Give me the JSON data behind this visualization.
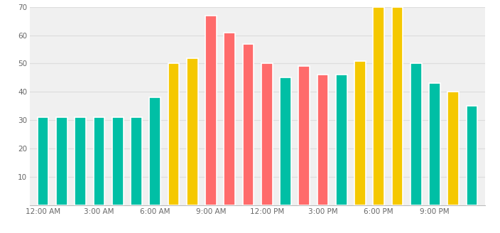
{
  "hours": [
    0,
    1,
    2,
    3,
    4,
    5,
    6,
    7,
    8,
    9,
    10,
    11,
    12,
    13,
    14,
    15,
    16,
    17,
    18,
    19,
    20,
    21,
    22,
    23
  ],
  "values": [
    31,
    31,
    31,
    31,
    31,
    31,
    38,
    50,
    52,
    67,
    61,
    57,
    50,
    45,
    49,
    46,
    46,
    51,
    70,
    70,
    50,
    43,
    40,
    35
  ],
  "colors": [
    "#00BFA5",
    "#00BFA5",
    "#00BFA5",
    "#00BFA5",
    "#00BFA5",
    "#00BFA5",
    "#00BFA5",
    "#F5C800",
    "#F5C800",
    "#FF6B6B",
    "#FF6B6B",
    "#FF6B6B",
    "#FF6B6B",
    "#00BFA5",
    "#FF6B6B",
    "#FF6B6B",
    "#00BFA5",
    "#F5C800",
    "#F5C800",
    "#F5C800",
    "#00BFA5",
    "#00BFA5",
    "#F5C800",
    "#00BFA5"
  ],
  "tick_hours": [
    0,
    3,
    6,
    9,
    12,
    15,
    18,
    21
  ],
  "tick_labels": [
    "12:00 AM",
    "3:00 AM",
    "6:00 AM",
    "9:00 AM",
    "12:00 PM",
    "3:00 PM",
    "6:00 PM",
    "9:00 PM"
  ],
  "ylim": [
    0,
    70
  ],
  "yticks": [
    10,
    20,
    30,
    40,
    50,
    60,
    70
  ],
  "background_color": "#FFFFFF",
  "plot_bg_color": "#F0F0F0",
  "grid_color": "#DDDDDD",
  "bar_width": 0.6,
  "bar_edge_color": "white",
  "bar_edge_width": 1.2
}
